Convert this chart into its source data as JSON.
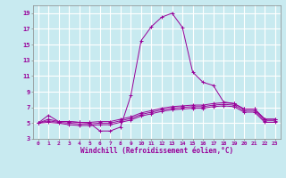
{
  "xlabel": "Windchill (Refroidissement éolien,°C)",
  "ylabel": "",
  "background_color": "#c8eaf0",
  "grid_color": "#ffffff",
  "line_color": "#990099",
  "xlim": [
    -0.5,
    23.5
  ],
  "ylim": [
    3,
    20
  ],
  "xticks": [
    0,
    1,
    2,
    3,
    4,
    5,
    6,
    7,
    8,
    9,
    10,
    11,
    12,
    13,
    14,
    15,
    16,
    17,
    18,
    19,
    20,
    21,
    22,
    23
  ],
  "yticks": [
    3,
    5,
    7,
    9,
    11,
    13,
    15,
    17,
    19
  ],
  "series": [
    {
      "x": [
        0,
        1,
        2,
        3,
        4,
        5,
        6,
        7,
        8,
        9,
        10,
        11,
        12,
        13,
        14,
        15,
        16,
        17,
        18,
        19,
        20,
        21,
        22,
        23
      ],
      "y": [
        5.0,
        6.0,
        5.2,
        5.2,
        5.1,
        5.0,
        4.0,
        4.0,
        4.5,
        8.5,
        15.5,
        17.3,
        18.5,
        19.0,
        17.2,
        11.5,
        10.2,
        9.8,
        7.7,
        7.5,
        6.8,
        6.8,
        5.5,
        5.5
      ]
    },
    {
      "x": [
        0,
        1,
        2,
        3,
        4,
        5,
        6,
        7,
        8,
        9,
        10,
        11,
        12,
        13,
        14,
        15,
        16,
        17,
        18,
        19,
        20,
        21,
        22,
        23
      ],
      "y": [
        5.0,
        5.5,
        5.2,
        5.2,
        5.1,
        5.1,
        5.2,
        5.2,
        5.5,
        5.8,
        6.3,
        6.6,
        6.9,
        7.1,
        7.2,
        7.3,
        7.3,
        7.5,
        7.6,
        7.5,
        6.8,
        6.8,
        5.5,
        5.5
      ]
    },
    {
      "x": [
        0,
        1,
        2,
        3,
        4,
        5,
        6,
        7,
        8,
        9,
        10,
        11,
        12,
        13,
        14,
        15,
        16,
        17,
        18,
        19,
        20,
        21,
        22,
        23
      ],
      "y": [
        5.0,
        5.3,
        5.1,
        5.0,
        4.9,
        4.9,
        5.0,
        5.0,
        5.3,
        5.6,
        6.1,
        6.4,
        6.7,
        6.9,
        7.0,
        7.1,
        7.1,
        7.3,
        7.4,
        7.3,
        6.6,
        6.6,
        5.3,
        5.3
      ]
    },
    {
      "x": [
        0,
        1,
        2,
        3,
        4,
        5,
        6,
        7,
        8,
        9,
        10,
        11,
        12,
        13,
        14,
        15,
        16,
        17,
        18,
        19,
        20,
        21,
        22,
        23
      ],
      "y": [
        5.0,
        5.1,
        5.0,
        4.8,
        4.7,
        4.7,
        4.8,
        4.8,
        5.1,
        5.4,
        5.9,
        6.2,
        6.5,
        6.7,
        6.8,
        6.9,
        6.9,
        7.1,
        7.2,
        7.1,
        6.4,
        6.4,
        5.1,
        5.1
      ]
    }
  ]
}
